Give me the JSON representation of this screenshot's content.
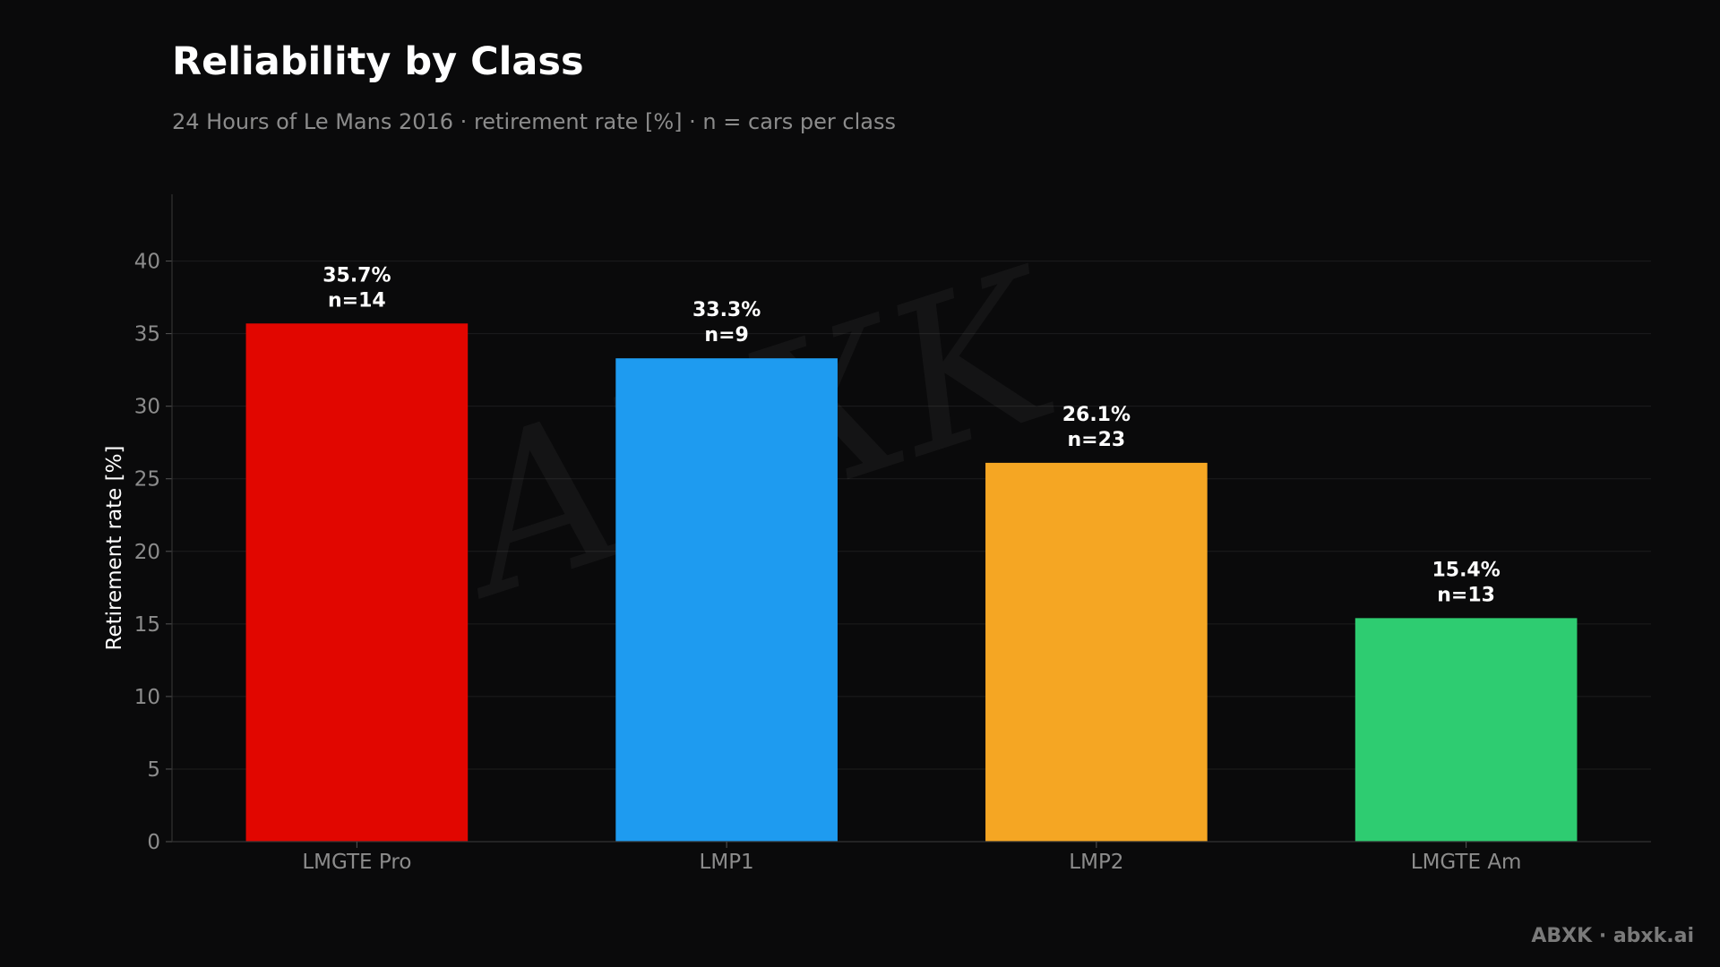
{
  "header": {
    "title": "Reliability by Class",
    "subtitle": "24 Hours of Le Mans 2016 · retirement rate [%] · n = cars per class"
  },
  "footer": {
    "credit": "ABXK · abxk.ai"
  },
  "watermark": {
    "text": "ABXK"
  },
  "chart_data": {
    "type": "bar",
    "categories": [
      "LMGTE Pro",
      "LMP1",
      "LMP2",
      "LMGTE Am"
    ],
    "values": [
      35.7,
      33.3,
      26.1,
      15.4
    ],
    "value_labels": [
      "35.7%",
      "33.3%",
      "26.1%",
      "15.4%"
    ],
    "count_labels": [
      "n=14",
      "n=9",
      "n=23",
      "n=13"
    ],
    "colors": [
      "#e10600",
      "#1e9bf0",
      "#f5a623",
      "#2ecc71"
    ],
    "ylabel": "Retirement rate [%]",
    "xlabel": "",
    "ylim": [
      0,
      44.6
    ],
    "yticks": [
      0,
      5,
      10,
      15,
      20,
      25,
      30,
      35,
      40
    ],
    "grid": true,
    "legend": "none"
  }
}
